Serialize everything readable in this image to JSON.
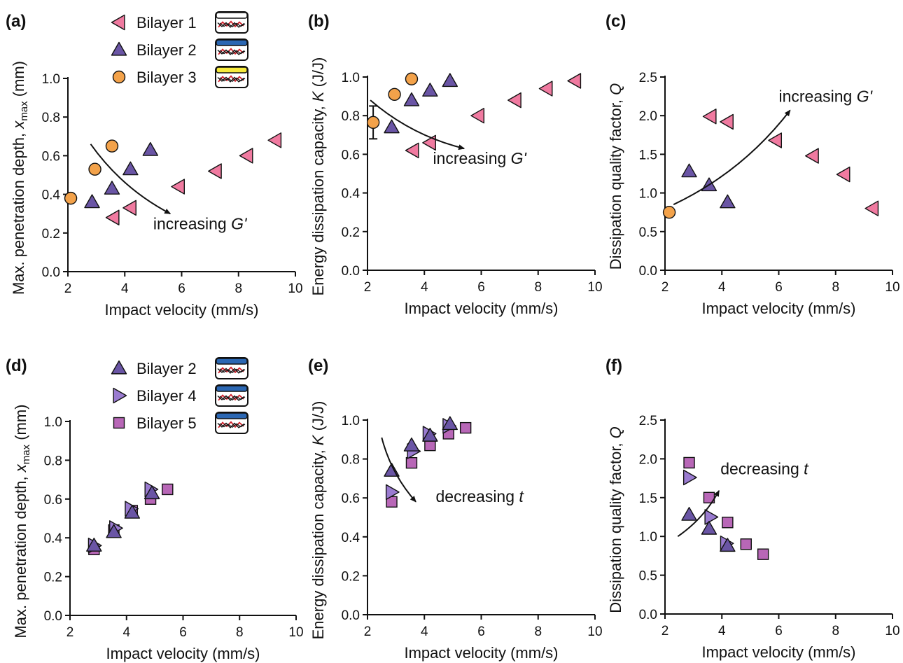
{
  "colors": {
    "bilayer1": "#f07aa0",
    "bilayer2": "#6a55a5",
    "bilayer3": "#f3a24a",
    "bilayer4": "#9a7bd0",
    "bilayer5": "#b867b7",
    "layer_white": "#ffffff",
    "layer_blue": "#2b67b3",
    "layer_yellow": "#f6ea3c",
    "fiber_red": "#d0202a",
    "fiber_black": "#111111"
  },
  "legends": [
    {
      "entries": [
        {
          "label": "Bilayer 1",
          "marker": "triangle-left",
          "color_key": "bilayer1",
          "layer": "layer_white"
        },
        {
          "label": "Bilayer 2",
          "marker": "triangle-up",
          "color_key": "bilayer2",
          "layer": "layer_blue"
        },
        {
          "label": "Bilayer 3",
          "marker": "circle",
          "color_key": "bilayer3",
          "layer": "layer_yellow"
        }
      ]
    },
    {
      "entries": [
        {
          "label": "Bilayer 2",
          "marker": "triangle-up",
          "color_key": "bilayer2",
          "layer": "layer_blue"
        },
        {
          "label": "Bilayer 4",
          "marker": "triangle-right",
          "color_key": "bilayer4",
          "layer": "layer_blue"
        },
        {
          "label": "Bilayer 5",
          "marker": "square",
          "color_key": "bilayer5",
          "layer": "layer_blue"
        }
      ]
    }
  ],
  "chart_data": [
    {
      "panel": "(a)",
      "type": "scatter",
      "xlabel": "Impact velocity (mm/s)",
      "ylabel_main": "Max. penetration depth, ",
      "ylabel_var": "x",
      "ylabel_sub": "max",
      "ylabel_unit": " (mm)",
      "xlim": [
        2,
        10
      ],
      "ylim": [
        0,
        1.0
      ],
      "xticks": [
        2,
        4,
        6,
        8,
        10
      ],
      "yticks": [
        0.0,
        0.2,
        0.4,
        0.6,
        0.8,
        1.0
      ],
      "ytick_labels": [
        "0.0",
        "0.2",
        "0.4",
        "0.6",
        "0.8",
        "1.0"
      ],
      "series": [
        {
          "name": "Bilayer 1",
          "marker": "triangle-left",
          "color_key": "bilayer1",
          "x": [
            3.6,
            4.2,
            5.9,
            7.2,
            8.3,
            9.3
          ],
          "y": [
            0.28,
            0.33,
            0.44,
            0.52,
            0.6,
            0.68
          ]
        },
        {
          "name": "Bilayer 2",
          "marker": "triangle-up",
          "color_key": "bilayer2",
          "x": [
            2.85,
            3.55,
            4.2,
            4.9
          ],
          "y": [
            0.36,
            0.43,
            0.53,
            0.63
          ]
        },
        {
          "name": "Bilayer 3",
          "marker": "circle",
          "color_key": "bilayer3",
          "x": [
            2.1,
            2.95,
            3.55
          ],
          "y": [
            0.38,
            0.53,
            0.65
          ]
        }
      ],
      "annotation": {
        "text": "increasing ",
        "var": "G'",
        "arrow_from": [
          2.8,
          0.66
        ],
        "arrow_to": [
          5.6,
          0.3
        ],
        "text_at": [
          5.0,
          0.22
        ],
        "curve": "down"
      }
    },
    {
      "panel": "(b)",
      "type": "scatter",
      "xlabel": "Impact velocity (mm/s)",
      "ylabel_main": "Energy dissipation capacity, ",
      "ylabel_var": "K",
      "ylabel_sub": "",
      "ylabel_unit": " (J/J)",
      "xlim": [
        2,
        10
      ],
      "ylim": [
        0,
        1.0
      ],
      "xticks": [
        2,
        4,
        6,
        8,
        10
      ],
      "yticks": [
        0.0,
        0.2,
        0.4,
        0.6,
        0.8,
        1.0
      ],
      "ytick_labels": [
        "0.0",
        "0.2",
        "0.4",
        "0.6",
        "0.8",
        "1.0"
      ],
      "series": [
        {
          "name": "Bilayer 1",
          "marker": "triangle-left",
          "color_key": "bilayer1",
          "x": [
            3.6,
            4.2,
            5.9,
            7.2,
            8.3,
            9.3
          ],
          "y": [
            0.62,
            0.66,
            0.8,
            0.88,
            0.94,
            0.98
          ]
        },
        {
          "name": "Bilayer 2",
          "marker": "triangle-up",
          "color_key": "bilayer2",
          "x": [
            2.85,
            3.55,
            4.2,
            4.9
          ],
          "y": [
            0.74,
            0.88,
            0.93,
            0.98
          ]
        },
        {
          "name": "Bilayer 3",
          "marker": "circle",
          "color_key": "bilayer3",
          "x": [
            2.2,
            2.95,
            3.55
          ],
          "y": [
            0.765,
            0.91,
            0.99
          ],
          "error_index": 0,
          "error": 0.085
        }
      ],
      "annotation": {
        "text": "increasing ",
        "var": "G'",
        "arrow_from": [
          2.1,
          0.88
        ],
        "arrow_to": [
          5.4,
          0.63
        ],
        "text_at": [
          4.3,
          0.55
        ],
        "curve": "down"
      }
    },
    {
      "panel": "(c)",
      "type": "scatter",
      "xlabel": "Impact velocity (mm/s)",
      "ylabel_main": "Dissipation quality factor, ",
      "ylabel_var": "Q",
      "ylabel_sub": "",
      "ylabel_unit": "",
      "xlim": [
        2,
        10
      ],
      "ylim": [
        0,
        2.5
      ],
      "xticks": [
        2,
        4,
        6,
        8,
        10
      ],
      "yticks": [
        0.0,
        0.5,
        1.0,
        1.5,
        2.0,
        2.5
      ],
      "ytick_labels": [
        "0.0",
        "0.5",
        "1.0",
        "1.5",
        "2.0",
        "2.5"
      ],
      "series": [
        {
          "name": "Bilayer 1",
          "marker": "triangle-left",
          "color_key": "bilayer1",
          "x": [
            3.6,
            4.2,
            5.9,
            7.2,
            8.3,
            9.3
          ],
          "y": [
            1.99,
            1.92,
            1.68,
            1.48,
            1.24,
            0.8
          ]
        },
        {
          "name": "Bilayer 2",
          "marker": "triangle-up",
          "color_key": "bilayer2",
          "x": [
            2.85,
            3.55,
            4.2
          ],
          "y": [
            1.28,
            1.1,
            0.88
          ]
        },
        {
          "name": "Bilayer 3",
          "marker": "circle",
          "color_key": "bilayer3",
          "x": [
            2.15
          ],
          "y": [
            0.75
          ]
        }
      ],
      "annotation": {
        "text": "increasing ",
        "var": "G'",
        "arrow_from": [
          2.3,
          0.85
        ],
        "arrow_to": [
          6.4,
          2.07
        ],
        "text_at": [
          6.0,
          2.18
        ],
        "curve": "up"
      }
    },
    {
      "panel": "(d)",
      "type": "scatter",
      "xlabel": "Impact velocity (mm/s)",
      "ylabel_main": "Max. penetration depth, ",
      "ylabel_var": "x",
      "ylabel_sub": "max",
      "ylabel_unit": " (mm)",
      "xlim": [
        2,
        10
      ],
      "ylim": [
        0,
        1.0
      ],
      "xticks": [
        2,
        4,
        6,
        8,
        10
      ],
      "yticks": [
        0.0,
        0.2,
        0.4,
        0.6,
        0.8,
        1.0
      ],
      "ytick_labels": [
        "0.0",
        "0.2",
        "0.4",
        "0.6",
        "0.8",
        "1.0"
      ],
      "series": [
        {
          "name": "Bilayer 5",
          "marker": "square",
          "color_key": "bilayer5",
          "x": [
            2.85,
            3.55,
            4.2,
            4.85,
            5.45
          ],
          "y": [
            0.34,
            0.44,
            0.54,
            0.6,
            0.65
          ]
        },
        {
          "name": "Bilayer 4",
          "marker": "triangle-right",
          "color_key": "bilayer4",
          "x": [
            2.85,
            3.6,
            4.15,
            4.85
          ],
          "y": [
            0.36,
            0.45,
            0.55,
            0.65
          ]
        },
        {
          "name": "Bilayer 2",
          "marker": "triangle-up",
          "color_key": "bilayer2",
          "x": [
            2.85,
            3.55,
            4.2,
            4.9
          ],
          "y": [
            0.36,
            0.43,
            0.53,
            0.63
          ]
        }
      ]
    },
    {
      "panel": "(e)",
      "type": "scatter",
      "xlabel": "Impact velocity (mm/s)",
      "ylabel_main": "Energy dissipation capacity, ",
      "ylabel_var": "K",
      "ylabel_sub": "",
      "ylabel_unit": " (J/J)",
      "xlim": [
        2,
        10
      ],
      "ylim": [
        0,
        1.0
      ],
      "xticks": [
        2,
        4,
        6,
        8,
        10
      ],
      "yticks": [
        0.0,
        0.2,
        0.4,
        0.6,
        0.8,
        1.0
      ],
      "ytick_labels": [
        "0.0",
        "0.2",
        "0.4",
        "0.6",
        "0.8",
        "1.0"
      ],
      "series": [
        {
          "name": "Bilayer 5",
          "marker": "square",
          "color_key": "bilayer5",
          "x": [
            2.85,
            3.55,
            4.2,
            4.85,
            5.45
          ],
          "y": [
            0.58,
            0.78,
            0.87,
            0.93,
            0.96
          ]
        },
        {
          "name": "Bilayer 4",
          "marker": "triangle-right",
          "color_key": "bilayer4",
          "x": [
            2.85,
            3.6,
            4.15,
            4.85
          ],
          "y": [
            0.63,
            0.84,
            0.93,
            0.97
          ]
        },
        {
          "name": "Bilayer 2",
          "marker": "triangle-up",
          "color_key": "bilayer2",
          "x": [
            2.85,
            3.55,
            4.2,
            4.9
          ],
          "y": [
            0.74,
            0.87,
            0.92,
            0.98
          ]
        }
      ],
      "annotation": {
        "text": "decreasing ",
        "var": "t",
        "arrow_from": [
          2.5,
          0.91
        ],
        "arrow_to": [
          3.7,
          0.58
        ],
        "text_at": [
          4.4,
          0.58
        ],
        "curve": "down"
      }
    },
    {
      "panel": "(f)",
      "type": "scatter",
      "xlabel": "Impact velocity (mm/s)",
      "ylabel_main": "Dissipation quality factor, ",
      "ylabel_var": "Q",
      "ylabel_sub": "",
      "ylabel_unit": "",
      "xlim": [
        2,
        10
      ],
      "ylim": [
        0,
        2.5
      ],
      "xticks": [
        2,
        4,
        6,
        8,
        10
      ],
      "yticks": [
        0.0,
        0.5,
        1.0,
        1.5,
        2.0,
        2.5
      ],
      "ytick_labels": [
        "0.0",
        "0.5",
        "1.0",
        "1.5",
        "2.0",
        "2.5"
      ],
      "series": [
        {
          "name": "Bilayer 5",
          "marker": "square",
          "color_key": "bilayer5",
          "x": [
            2.85,
            3.55,
            4.2,
            4.85,
            5.45
          ],
          "y": [
            1.95,
            1.5,
            1.18,
            0.9,
            0.77
          ]
        },
        {
          "name": "Bilayer 4",
          "marker": "triangle-right",
          "color_key": "bilayer4",
          "x": [
            2.85,
            3.6,
            4.15
          ],
          "y": [
            1.76,
            1.25,
            0.91
          ]
        },
        {
          "name": "Bilayer 2",
          "marker": "triangle-up",
          "color_key": "bilayer2",
          "x": [
            2.85,
            3.55,
            4.2
          ],
          "y": [
            1.28,
            1.1,
            0.88
          ]
        }
      ],
      "annotation": {
        "text": "decreasing ",
        "var": "t",
        "arrow_from": [
          2.45,
          1.0
        ],
        "arrow_to": [
          3.9,
          1.59
        ],
        "text_at": [
          3.95,
          1.8
        ],
        "curve": "up"
      }
    }
  ]
}
